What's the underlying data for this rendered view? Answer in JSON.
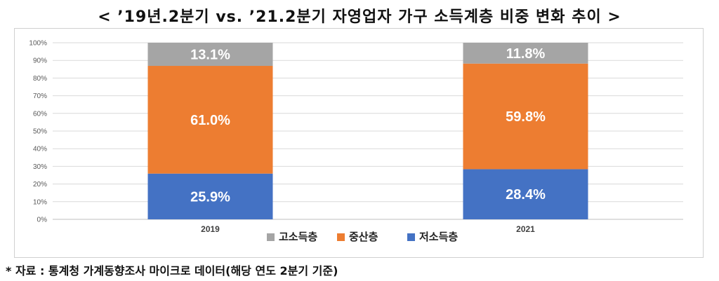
{
  "title": "< ’19년.2분기 vs. ’21.2분기 자영업자 가구 소득계층 비중 변화 추이 >",
  "source": "* 자료 : 통계청 가계동향조사 마이크로 데이터(해당 연도 2분기 기준)",
  "chart_data": {
    "type": "bar",
    "stacked": true,
    "categories": [
      "2019",
      "2021"
    ],
    "series": [
      {
        "name": "저소득층",
        "color": "#4472C4",
        "values": [
          25.9,
          28.4
        ],
        "labels": [
          "25.9%",
          "28.4%"
        ]
      },
      {
        "name": "중산층",
        "color": "#ED7D31",
        "values": [
          61.0,
          59.8
        ],
        "labels": [
          "61.0%",
          "59.8%"
        ]
      },
      {
        "name": "고소득층",
        "color": "#A5A5A5",
        "values": [
          13.1,
          11.8
        ],
        "labels": [
          "13.1%",
          "11.8%"
        ]
      }
    ],
    "legend_order": [
      "고소득층",
      "중산층",
      "저소득층"
    ],
    "legend_position": "bottom",
    "yticks": [
      "0%",
      "10%",
      "20%",
      "30%",
      "40%",
      "50%",
      "60%",
      "70%",
      "80%",
      "90%",
      "100%"
    ],
    "ylim": [
      0,
      100
    ],
    "grid": true
  }
}
